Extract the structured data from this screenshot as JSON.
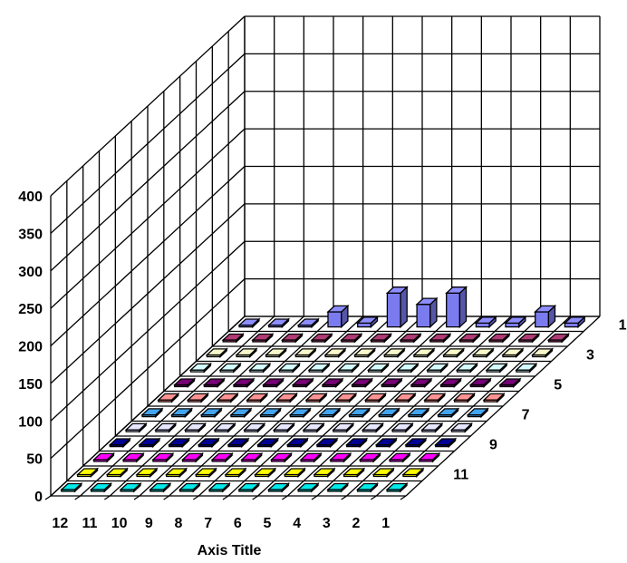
{
  "chart_data": {
    "type": "bar",
    "subtype": "3d-column",
    "title": "",
    "xlabel": "Axis Title",
    "ylabel": "",
    "ylim": [
      0,
      400
    ],
    "y_ticks": [
      "0",
      "50",
      "100",
      "150",
      "200",
      "250",
      "300",
      "350",
      "400"
    ],
    "x_tick_labels": [
      "12",
      "11",
      "10",
      "9",
      "8",
      "7",
      "6",
      "5",
      "4",
      "3",
      "2",
      "1"
    ],
    "depth_tick_labels": [
      "1",
      "3",
      "5",
      "7",
      "9",
      "11"
    ],
    "grid": true,
    "legend": "none",
    "series_colors": [
      "#7b7bf0",
      "#993366",
      "#d8d8b0",
      "#b8dce0",
      "#660066",
      "#ff8080",
      "#3a8fd0",
      "#c8c8f8",
      "#000080",
      "#ff00ff",
      "#ffff00",
      "#00cccc"
    ],
    "series": [
      {
        "values": [
          0,
          0,
          0,
          20,
          5,
          45,
          30,
          45,
          5,
          5,
          20,
          5
        ]
      },
      {
        "values": [
          0,
          0,
          0,
          0,
          0,
          0,
          0,
          0,
          0,
          0,
          0,
          0
        ]
      },
      {
        "values": [
          0,
          0,
          0,
          0,
          0,
          0,
          0,
          0,
          0,
          0,
          0,
          0
        ]
      },
      {
        "values": [
          0,
          0,
          0,
          0,
          0,
          0,
          0,
          0,
          0,
          0,
          0,
          0
        ]
      },
      {
        "values": [
          0,
          0,
          0,
          0,
          0,
          0,
          0,
          0,
          0,
          0,
          0,
          0
        ]
      },
      {
        "values": [
          0,
          0,
          0,
          0,
          0,
          0,
          0,
          0,
          0,
          0,
          0,
          0
        ]
      },
      {
        "values": [
          0,
          0,
          0,
          0,
          0,
          0,
          0,
          0,
          0,
          0,
          0,
          0
        ]
      },
      {
        "values": [
          0,
          0,
          0,
          0,
          0,
          0,
          0,
          0,
          0,
          0,
          0,
          0
        ]
      },
      {
        "values": [
          0,
          0,
          0,
          0,
          0,
          0,
          0,
          0,
          0,
          0,
          0,
          0
        ]
      },
      {
        "values": [
          0,
          0,
          0,
          0,
          0,
          0,
          0,
          0,
          0,
          0,
          0,
          0
        ]
      },
      {
        "values": [
          0,
          0,
          0,
          0,
          0,
          0,
          0,
          0,
          0,
          0,
          0,
          0
        ]
      },
      {
        "values": [
          0,
          0,
          0,
          0,
          0,
          0,
          0,
          0,
          0,
          0,
          0,
          0
        ]
      }
    ]
  }
}
